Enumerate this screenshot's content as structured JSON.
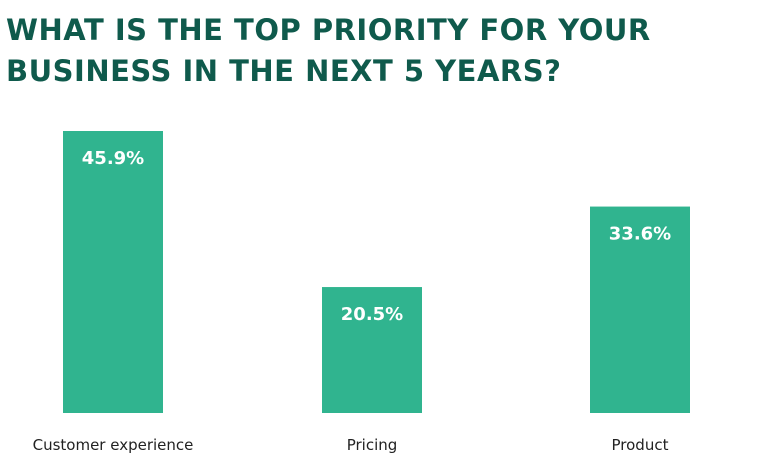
{
  "chart_data": {
    "type": "bar",
    "title": "WHAT IS THE TOP PRIORITY FOR YOUR BUSINESS IN THE NEXT 5 YEARS?",
    "categories": [
      "Customer experience",
      "Pricing",
      "Product"
    ],
    "values": [
      45.9,
      20.5,
      33.6
    ],
    "value_labels": [
      "45.9%",
      "20.5%",
      "33.6%"
    ],
    "unit": "%",
    "ylim": [
      0,
      45.9
    ],
    "grid": false,
    "legend": "none",
    "bar_color": "#30b48f",
    "title_color": "#0f5a4c"
  }
}
